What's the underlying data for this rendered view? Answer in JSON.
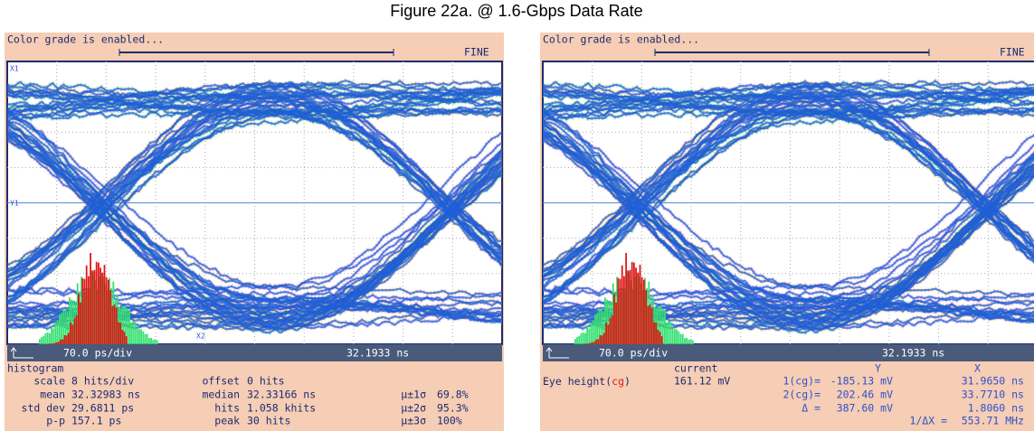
{
  "title": "Figure 22a. @ 1.6-Gbps Data Rate",
  "panels": [
    {
      "status": "Color grade is enabled...",
      "mode": "FINE",
      "markers": [
        "X1",
        "Y1",
        "X2"
      ],
      "timebase": "70.0 ps/div",
      "position": "32.1933 ns",
      "readout": {
        "heading": "histogram",
        "rows": [
          [
            "scale",
            "8 hits/div",
            "offset",
            "0 hits"
          ],
          [
            "mean",
            "32.32983 ns",
            "median",
            "32.33166 ns",
            "µ±1σ",
            "69.8%"
          ],
          [
            "std dev",
            "29.6811 ps",
            "hits",
            "1.058 khits",
            "µ±2σ",
            "95.3%"
          ],
          [
            "p-p",
            "157.1 ps",
            "peak",
            "30 hits",
            "µ±3σ",
            "100%"
          ]
        ]
      }
    },
    {
      "status": "Color grade is enabled...",
      "mode": "FINE",
      "timebase": "70.0 ps/div",
      "position": "32.1933 ns",
      "readout": {
        "heading": "current",
        "col_y": "Y",
        "col_x": "X",
        "measure": [
          "Eye height(",
          "cg",
          ")"
        ],
        "measure_value": "161.12 mV",
        "cursors": [
          [
            "1(cg)=",
            "-185.13 mV",
            "31.9650 ns"
          ],
          [
            "2(cg)=",
            "202.46 mV",
            "33.7710 ns"
          ],
          [
            "Δ =",
            "387.60 mV",
            "1.8060 ns"
          ],
          [
            "1/ΔX =",
            "553.71 MHz"
          ]
        ]
      }
    }
  ]
}
